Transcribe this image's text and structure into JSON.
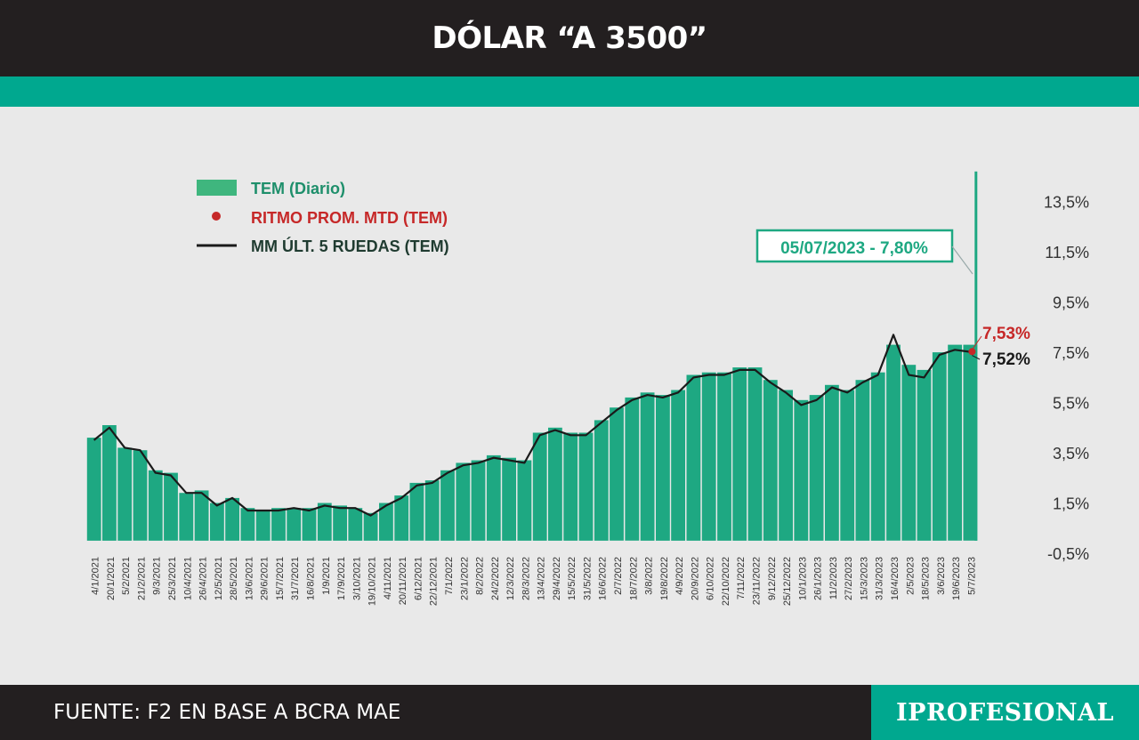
{
  "header": {
    "title": "DÓLAR “A 3500”"
  },
  "footer": {
    "source": "FUENTE: F2 EN BASE A BCRA MAE",
    "brand": "IPROFESIONAL"
  },
  "chart_data": {
    "type": "bar",
    "title": "DÓLAR “A 3500”",
    "xlabel": "",
    "ylabel": "",
    "ylim": [
      -0.5,
      14.8
    ],
    "y_ticks": [
      "-0,5%",
      "1,5%",
      "3,5%",
      "5,5%",
      "7,5%",
      "9,5%",
      "11,5%",
      "13,5%"
    ],
    "x_ticks": [
      "4/1/2021",
      "20/1/2021",
      "5/2/2021",
      "21/2/2021",
      "9/3/2021",
      "25/3/2021",
      "10/4/2021",
      "26/4/2021",
      "12/5/2021",
      "28/5/2021",
      "13/6/2021",
      "29/6/2021",
      "15/7/2021",
      "31/7/2021",
      "16/8/2021",
      "1/9/2021",
      "17/9/2021",
      "3/10/2021",
      "19/10/2021",
      "4/11/2021",
      "20/11/2021",
      "6/12/2021",
      "22/12/2021",
      "7/1/2022",
      "23/1/2022",
      "8/2/2022",
      "24/2/2022",
      "12/3/2022",
      "28/3/2022",
      "13/4/2022",
      "29/4/2022",
      "15/5/2022",
      "31/5/2022",
      "16/6/2022",
      "2/7/2022",
      "18/7/2022",
      "3/8/2022",
      "19/8/2022",
      "4/9/2022",
      "20/9/2022",
      "6/10/2022",
      "22/10/2022",
      "7/11/2022",
      "23/11/2022",
      "9/12/2022",
      "25/12/2022",
      "10/1/2023",
      "26/1/2023",
      "11/2/2023",
      "27/2/2023",
      "15/3/2023",
      "31/3/2023",
      "16/4/2023",
      "2/5/2023",
      "18/5/2023",
      "3/6/2023",
      "19/6/2023",
      "5/7/2023"
    ],
    "legend": {
      "placement": "top-left",
      "entries": [
        {
          "label": "TEM (Diario)",
          "color": "#3fb67e"
        },
        {
          "label": "RITMO PROM. MTD (TEM)",
          "color": "#c62828"
        },
        {
          "label": "MM ÚLT. 5 RUEDAS (TEM)",
          "color": "#1a1a1a"
        }
      ]
    },
    "series": [
      {
        "name": "TEM (Diario)",
        "color": "#1ea882",
        "x": [
          "4/1/2021",
          "20/1/2021",
          "5/2/2021",
          "21/2/2021",
          "9/3/2021",
          "25/3/2021",
          "10/4/2021",
          "26/4/2021",
          "12/5/2021",
          "28/5/2021",
          "13/6/2021",
          "29/6/2021",
          "15/7/2021",
          "31/7/2021",
          "16/8/2021",
          "1/9/2021",
          "17/9/2021",
          "3/10/2021",
          "19/10/2021",
          "4/11/2021",
          "20/11/2021",
          "6/12/2021",
          "22/12/2021",
          "7/1/2022",
          "23/1/2022",
          "8/2/2022",
          "24/2/2022",
          "12/3/2022",
          "28/3/2022",
          "13/4/2022",
          "29/4/2022",
          "15/5/2022",
          "31/5/2022",
          "16/6/2022",
          "2/7/2022",
          "18/7/2022",
          "3/8/2022",
          "19/8/2022",
          "4/9/2022",
          "20/9/2022",
          "6/10/2022",
          "22/10/2022",
          "7/11/2022",
          "23/11/2022",
          "9/12/2022",
          "25/12/2022",
          "10/1/2023",
          "26/1/2023",
          "11/2/2023",
          "27/2/2023",
          "15/3/2023",
          "31/3/2023",
          "16/4/2023",
          "2/5/2023",
          "18/5/2023",
          "3/6/2023",
          "19/6/2023",
          "5/7/2023"
        ],
        "values": [
          4.1,
          4.6,
          3.7,
          3.6,
          2.8,
          2.7,
          1.9,
          2.0,
          1.5,
          1.7,
          1.3,
          1.2,
          1.3,
          1.3,
          1.3,
          1.5,
          1.4,
          1.3,
          1.1,
          1.5,
          1.8,
          2.3,
          2.4,
          2.8,
          3.1,
          3.2,
          3.4,
          3.3,
          3.2,
          4.3,
          4.5,
          4.3,
          4.3,
          4.8,
          5.3,
          5.7,
          5.9,
          5.8,
          6.0,
          6.6,
          6.7,
          6.7,
          6.9,
          6.9,
          6.4,
          6.0,
          5.6,
          5.8,
          6.2,
          6.0,
          6.4,
          6.7,
          7.8,
          7.0,
          6.8,
          7.5,
          7.8,
          7.8
        ]
      },
      {
        "name": "MM ÚLT. 5 RUEDAS (TEM)",
        "color": "#1a1a1a",
        "x": [
          "4/1/2021",
          "20/1/2021",
          "5/2/2021",
          "21/2/2021",
          "9/3/2021",
          "25/3/2021",
          "10/4/2021",
          "26/4/2021",
          "12/5/2021",
          "28/5/2021",
          "13/6/2021",
          "29/6/2021",
          "15/7/2021",
          "31/7/2021",
          "16/8/2021",
          "1/9/2021",
          "17/9/2021",
          "3/10/2021",
          "19/10/2021",
          "4/11/2021",
          "20/11/2021",
          "6/12/2021",
          "22/12/2021",
          "7/1/2022",
          "23/1/2022",
          "8/2/2022",
          "24/2/2022",
          "12/3/2022",
          "28/3/2022",
          "13/4/2022",
          "29/4/2022",
          "15/5/2022",
          "31/5/2022",
          "16/6/2022",
          "2/7/2022",
          "18/7/2022",
          "3/8/2022",
          "19/8/2022",
          "4/9/2022",
          "20/9/2022",
          "6/10/2022",
          "22/10/2022",
          "7/11/2022",
          "23/11/2022",
          "9/12/2022",
          "25/12/2022",
          "10/1/2023",
          "26/1/2023",
          "11/2/2023",
          "27/2/2023",
          "15/3/2023",
          "31/3/2023",
          "16/4/2023",
          "2/5/2023",
          "18/5/2023",
          "3/6/2023",
          "19/6/2023",
          "5/7/2023"
        ],
        "values": [
          4.0,
          4.5,
          3.7,
          3.6,
          2.7,
          2.6,
          1.9,
          1.9,
          1.4,
          1.7,
          1.2,
          1.2,
          1.2,
          1.3,
          1.2,
          1.4,
          1.3,
          1.3,
          1.0,
          1.4,
          1.7,
          2.2,
          2.3,
          2.7,
          3.0,
          3.1,
          3.3,
          3.2,
          3.1,
          4.2,
          4.4,
          4.2,
          4.2,
          4.7,
          5.2,
          5.6,
          5.8,
          5.7,
          5.9,
          6.5,
          6.6,
          6.6,
          6.8,
          6.8,
          6.3,
          5.9,
          5.4,
          5.6,
          6.1,
          5.9,
          6.3,
          6.6,
          8.2,
          6.6,
          6.5,
          7.4,
          7.6,
          7.52
        ]
      }
    ],
    "spike": {
      "x": "5/7/2023",
      "value": 14.7
    },
    "annotations": [
      {
        "text": "05/07/2023 - 7,80%",
        "x": "5/7/2023",
        "value": 7.8,
        "color": "#1ea882"
      },
      {
        "text": "7,53%",
        "value": 7.53,
        "color": "#c62828"
      },
      {
        "text": "7,52%",
        "value": 7.52,
        "color": "#1a1a1a"
      }
    ],
    "grid": false,
    "colors": {
      "bar": "#1ea882",
      "avg_line": "#1a1a1a",
      "mtd_dot": "#c62828",
      "header_bg": "#231f20",
      "accent": "#00a88f"
    }
  }
}
